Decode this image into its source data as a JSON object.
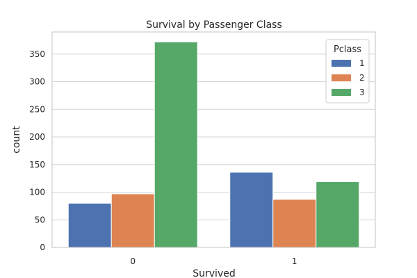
{
  "chart_data": {
    "type": "bar",
    "title": "Survival by Passenger Class",
    "xlabel": "Survived",
    "ylabel": "count",
    "categories": [
      "0",
      "1"
    ],
    "series": [
      {
        "name": "1",
        "values": [
          80,
          136
        ],
        "color": "#4c72b0"
      },
      {
        "name": "2",
        "values": [
          97,
          87
        ],
        "color": "#dd8452"
      },
      {
        "name": "3",
        "values": [
          372,
          119
        ],
        "color": "#55a868"
      }
    ],
    "ylim": [
      0,
      390
    ],
    "yticks": [
      0,
      50,
      100,
      150,
      200,
      250,
      300,
      350
    ],
    "legend": {
      "title": "Pclass",
      "placement": "top-right"
    },
    "grid": true
  }
}
